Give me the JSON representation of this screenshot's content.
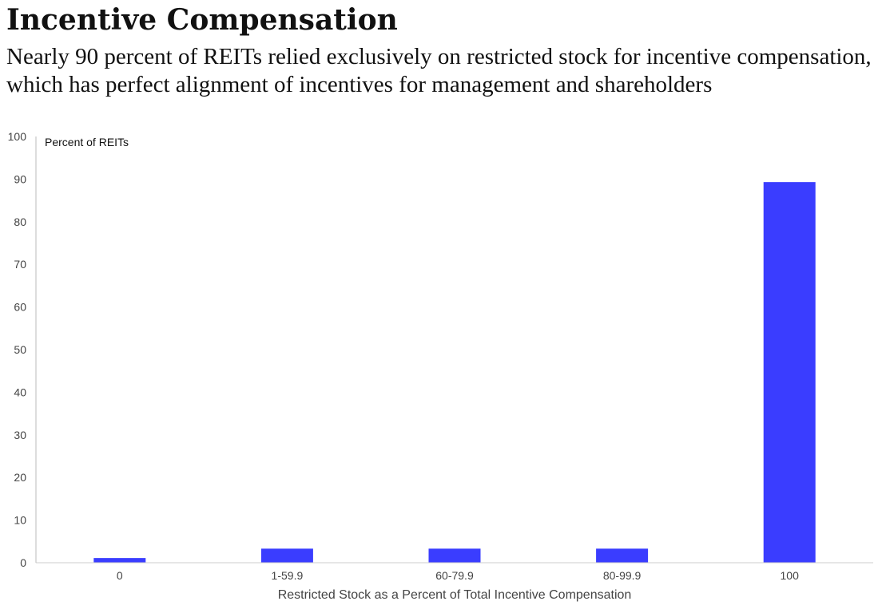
{
  "title": "Incentive Compensation",
  "subtitle": "Nearly 90 percent of REITs relied exclusively on restricted stock for incentive compensation, which has perfect alignment of incentives for management and shareholders",
  "chart_data": {
    "type": "bar",
    "categories": [
      "0",
      "1-59.9",
      "60-79.9",
      "80-99.9",
      "100"
    ],
    "values": [
      1.1,
      3.3,
      3.3,
      3.3,
      89.3
    ],
    "title": "Incentive Compensation",
    "subtitle": "Nearly 90 percent of REITs relied exclusively on restricted stock for incentive compensation, which has perfect alignment of incentives for management and shareholders",
    "xlabel": "Restricted Stock as a Percent of Total Incentive Compensation",
    "ylabel": "Percent of REITs",
    "ylim": [
      0,
      100
    ],
    "yticks": [
      0,
      10,
      20,
      30,
      40,
      50,
      60,
      70,
      80,
      90,
      100
    ],
    "grid": false,
    "legend": "none",
    "bar_color": "#3a3dff"
  }
}
